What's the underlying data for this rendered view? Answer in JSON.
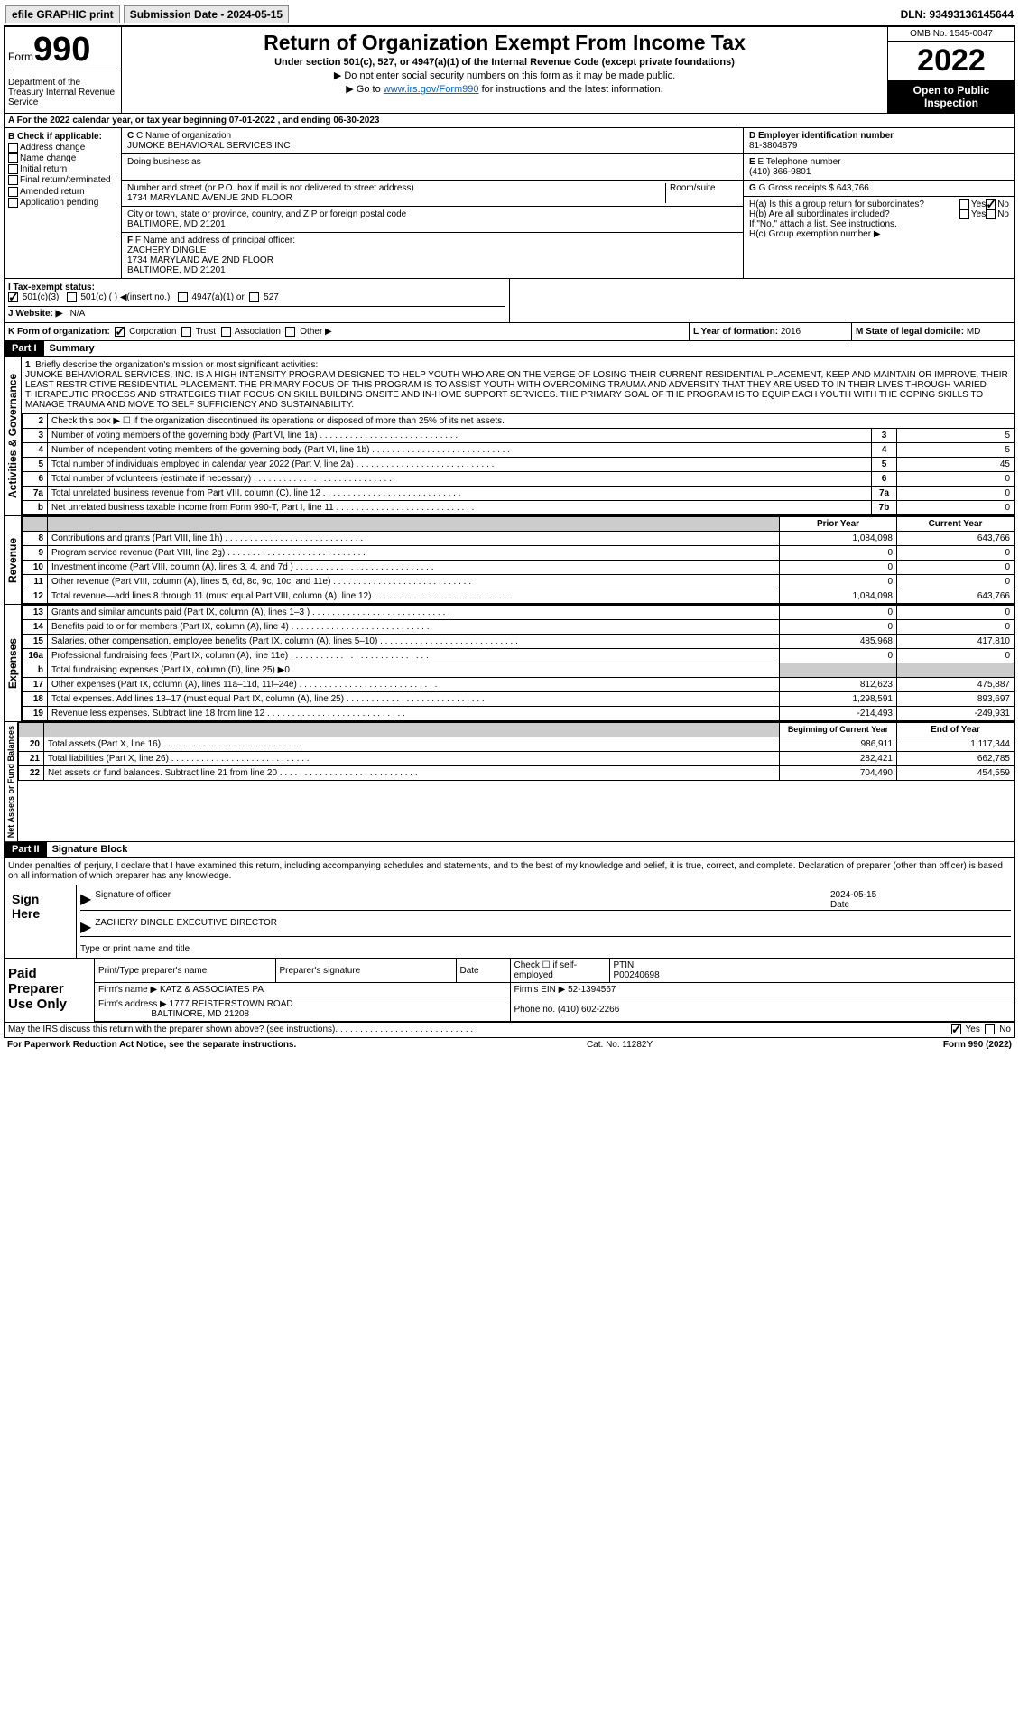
{
  "topbar": {
    "efile": "efile GRAPHIC print",
    "submission_label": "Submission Date - 2024-05-15",
    "dln": "DLN: 93493136145644"
  },
  "header": {
    "form_word": "Form",
    "form_num": "990",
    "dept": "Department of the Treasury Internal Revenue Service",
    "title": "Return of Organization Exempt From Income Tax",
    "sub1": "Under section 501(c), 527, or 4947(a)(1) of the Internal Revenue Code (except private foundations)",
    "sub2": "▶ Do not enter social security numbers on this form as it may be made public.",
    "sub3_pre": "▶ Go to ",
    "sub3_link": "www.irs.gov/Form990",
    "sub3_post": " for instructions and the latest information.",
    "omb": "OMB No. 1545-0047",
    "year": "2022",
    "open": "Open to Public Inspection"
  },
  "row_a": "A For the 2022 calendar year, or tax year beginning 07-01-2022  , and ending 06-30-2023",
  "section_b": {
    "b_label": "B Check if applicable:",
    "b_opts": [
      "Address change",
      "Name change",
      "Initial return",
      "Final return/terminated",
      "Amended return",
      "Application pending"
    ],
    "c_label": "C Name of organization",
    "c_name": "JUMOKE BEHAVIORAL SERVICES INC",
    "dba_label": "Doing business as",
    "addr_label": "Number and street (or P.O. box if mail is not delivered to street address)",
    "addr": "1734 MARYLAND AVENUE 2ND FLOOR",
    "room_label": "Room/suite",
    "city_label": "City or town, state or province, country, and ZIP or foreign postal code",
    "city": "BALTIMORE, MD  21201",
    "d_label": "D Employer identification number",
    "d_val": "81-3804879",
    "e_label": "E Telephone number",
    "e_val": "(410) 366-9801",
    "g_label": "G Gross receipts $",
    "g_val": "643,766"
  },
  "section_f": {
    "f_label": "F Name and address of principal officer:",
    "f_name": "ZACHERY DINGLE",
    "f_addr1": "1734 MARYLAND AVE 2ND FLOOR",
    "f_addr2": "BALTIMORE, MD  21201",
    "ha_label": "H(a)  Is this a group return for subordinates?",
    "hb_label": "H(b)  Are all subordinates included?",
    "hb_note": "If \"No,\" attach a list. See instructions.",
    "hc_label": "H(c)  Group exemption number ▶"
  },
  "row_i": {
    "i_label": "I  Tax-exempt status:",
    "i_501c3": "501(c)(3)",
    "i_501c": "501(c) (  ) ◀(insert no.)",
    "i_4947": "4947(a)(1) or",
    "i_527": "527"
  },
  "row_j": {
    "label": "J  Website: ▶",
    "val": "N/A"
  },
  "row_k": {
    "k_label": "K Form of organization:",
    "k_corp": "Corporation",
    "k_trust": "Trust",
    "k_assoc": "Association",
    "k_other": "Other ▶",
    "l_label": "L Year of formation:",
    "l_val": "2016",
    "m_label": "M State of legal domicile:",
    "m_val": "MD"
  },
  "part1": {
    "header": "Part I",
    "title": "Summary",
    "vtab1": "Activities & Governance",
    "vtab2": "Revenue",
    "vtab3": "Expenses",
    "vtab4": "Net Assets or Fund Balances",
    "line1_label": "Briefly describe the organization's mission or most significant activities:",
    "line1_text": "JUMOKE BEHAVIORAL SERVICES, INC. IS A HIGH INTENSITY PROGRAM DESIGNED TO HELP YOUTH WHO ARE ON THE VERGE OF LOSING THEIR CURRENT RESIDENTIAL PLACEMENT, KEEP AND MAINTAIN OR IMPROVE, THEIR LEAST RESTRICTIVE RESIDENTIAL PLACEMENT. THE PRIMARY FOCUS OF THIS PROGRAM IS TO ASSIST YOUTH WITH OVERCOMING TRAUMA AND ADVERSITY THAT THEY ARE USED TO IN THEIR LIVES THROUGH VARIED THERAPEUTIC PROCESS AND STRATEGIES THAT FOCUS ON SKILL BUILDING ONSITE AND IN-HOME SUPPORT SERVICES. THE PRIMARY GOAL OF THE PROGRAM IS TO EQUIP EACH YOUTH WITH THE COPING SKILLS TO MANAGE TRAUMA AND MOVE TO SELF SUFFICIENCY AND SUSTAINABILITY.",
    "line2": "Check this box ▶ ☐ if the organization discontinued its operations or disposed of more than 25% of its net assets.",
    "rows_gov": [
      {
        "n": "3",
        "label": "Number of voting members of the governing body (Part VI, line 1a)",
        "box": "3",
        "val": "5"
      },
      {
        "n": "4",
        "label": "Number of independent voting members of the governing body (Part VI, line 1b)",
        "box": "4",
        "val": "5"
      },
      {
        "n": "5",
        "label": "Total number of individuals employed in calendar year 2022 (Part V, line 2a)",
        "box": "5",
        "val": "45"
      },
      {
        "n": "6",
        "label": "Total number of volunteers (estimate if necessary)",
        "box": "6",
        "val": "0"
      },
      {
        "n": "7a",
        "label": "Total unrelated business revenue from Part VIII, column (C), line 12",
        "box": "7a",
        "val": "0"
      },
      {
        "n": "b",
        "label": "Net unrelated business taxable income from Form 990-T, Part I, line 11",
        "box": "7b",
        "val": "0"
      }
    ],
    "col_prior": "Prior Year",
    "col_current": "Current Year",
    "col_begin": "Beginning of Current Year",
    "col_end": "End of Year",
    "rows_rev": [
      {
        "n": "8",
        "label": "Contributions and grants (Part VIII, line 1h)",
        "prior": "1,084,098",
        "curr": "643,766"
      },
      {
        "n": "9",
        "label": "Program service revenue (Part VIII, line 2g)",
        "prior": "0",
        "curr": "0"
      },
      {
        "n": "10",
        "label": "Investment income (Part VIII, column (A), lines 3, 4, and 7d )",
        "prior": "0",
        "curr": "0"
      },
      {
        "n": "11",
        "label": "Other revenue (Part VIII, column (A), lines 5, 6d, 8c, 9c, 10c, and 11e)",
        "prior": "0",
        "curr": "0"
      },
      {
        "n": "12",
        "label": "Total revenue—add lines 8 through 11 (must equal Part VIII, column (A), line 12)",
        "prior": "1,084,098",
        "curr": "643,766"
      }
    ],
    "rows_exp": [
      {
        "n": "13",
        "label": "Grants and similar amounts paid (Part IX, column (A), lines 1–3 )",
        "prior": "0",
        "curr": "0"
      },
      {
        "n": "14",
        "label": "Benefits paid to or for members (Part IX, column (A), line 4)",
        "prior": "0",
        "curr": "0"
      },
      {
        "n": "15",
        "label": "Salaries, other compensation, employee benefits (Part IX, column (A), lines 5–10)",
        "prior": "485,968",
        "curr": "417,810"
      },
      {
        "n": "16a",
        "label": "Professional fundraising fees (Part IX, column (A), line 11e)",
        "prior": "0",
        "curr": "0"
      },
      {
        "n": "b",
        "label": "Total fundraising expenses (Part IX, column (D), line 25) ▶0",
        "prior": "",
        "curr": "",
        "shade": true
      },
      {
        "n": "17",
        "label": "Other expenses (Part IX, column (A), lines 11a–11d, 11f–24e)",
        "prior": "812,623",
        "curr": "475,887"
      },
      {
        "n": "18",
        "label": "Total expenses. Add lines 13–17 (must equal Part IX, column (A), line 25)",
        "prior": "1,298,591",
        "curr": "893,697"
      },
      {
        "n": "19",
        "label": "Revenue less expenses. Subtract line 18 from line 12",
        "prior": "-214,493",
        "curr": "-249,931"
      }
    ],
    "rows_net": [
      {
        "n": "20",
        "label": "Total assets (Part X, line 16)",
        "prior": "986,911",
        "curr": "1,117,344"
      },
      {
        "n": "21",
        "label": "Total liabilities (Part X, line 26)",
        "prior": "282,421",
        "curr": "662,785"
      },
      {
        "n": "22",
        "label": "Net assets or fund balances. Subtract line 21 from line 20",
        "prior": "704,490",
        "curr": "454,559"
      }
    ]
  },
  "part2": {
    "header": "Part II",
    "title": "Signature Block",
    "decl": "Under penalties of perjury, I declare that I have examined this return, including accompanying schedules and statements, and to the best of my knowledge and belief, it is true, correct, and complete. Declaration of preparer (other than officer) is based on all information of which preparer has any knowledge.",
    "sign_here": "Sign Here",
    "sig_officer": "Signature of officer",
    "sig_date": "2024-05-15",
    "date_label": "Date",
    "officer_name": "ZACHERY DINGLE  EXECUTIVE DIRECTOR",
    "type_label": "Type or print name and title",
    "paid_prep": "Paid Preparer Use Only",
    "prep_name_label": "Print/Type preparer's name",
    "prep_sig_label": "Preparer's signature",
    "prep_date_label": "Date",
    "prep_check": "Check ☐ if self-employed",
    "ptin_label": "PTIN",
    "ptin": "P00240698",
    "firm_name_label": "Firm's name    ▶",
    "firm_name": "KATZ & ASSOCIATES PA",
    "firm_ein_label": "Firm's EIN ▶",
    "firm_ein": "52-1394567",
    "firm_addr_label": "Firm's address ▶",
    "firm_addr1": "1777 REISTERSTOWN ROAD",
    "firm_addr2": "BALTIMORE, MD  21208",
    "firm_phone_label": "Phone no.",
    "firm_phone": "(410) 602-2266",
    "discuss": "May the IRS discuss this return with the preparer shown above? (see instructions)",
    "yes": "Yes",
    "no": "No"
  },
  "footer": {
    "paperwork": "For Paperwork Reduction Act Notice, see the separate instructions.",
    "cat": "Cat. No. 11282Y",
    "form": "Form 990 (2022)"
  }
}
